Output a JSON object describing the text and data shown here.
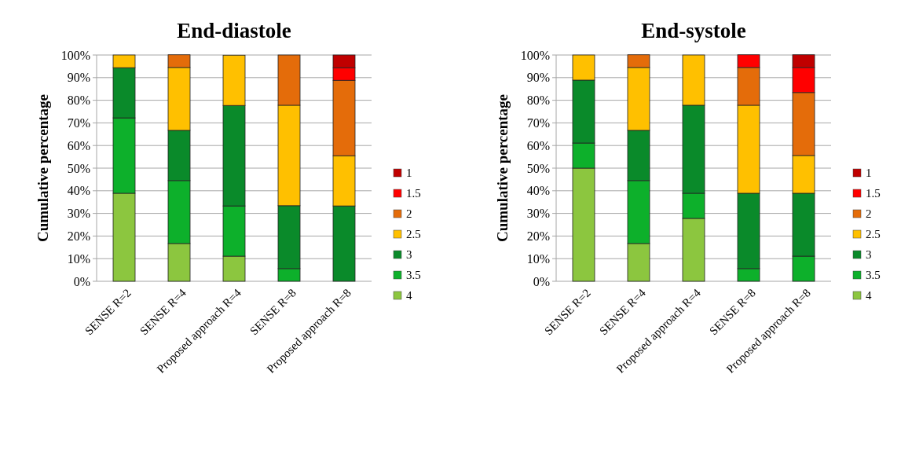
{
  "chart_data": [
    {
      "type": "bar",
      "stacked": true,
      "title": "End-diastole",
      "ylabel": "Cumulative percentage",
      "categories": [
        "SENSE R=2",
        "SENSE R=4",
        "Proposed approach R=4",
        "SENSE R=8",
        "Proposed approach R=8"
      ],
      "series": [
        {
          "name": "4",
          "color": "#8cc63f",
          "values": [
            38.9,
            16.7,
            11.1,
            null,
            null
          ]
        },
        {
          "name": "3.5",
          "color": "#0db02b",
          "values": [
            33.3,
            27.8,
            22.2,
            5.6,
            null
          ]
        },
        {
          "name": "3",
          "color": "#0a8a2a",
          "values": [
            22.2,
            22.2,
            44.4,
            27.8,
            33.3
          ]
        },
        {
          "name": "2.5",
          "color": "#ffc000",
          "values": [
            5.6,
            27.8,
            22.2,
            44.4,
            22.2
          ]
        },
        {
          "name": "2",
          "color": "#e46c0a",
          "values": [
            null,
            5.6,
            null,
            22.2,
            33.3
          ]
        },
        {
          "name": "1.5",
          "color": "#ff0000",
          "values": [
            null,
            null,
            null,
            null,
            5.6
          ]
        },
        {
          "name": "1",
          "color": "#c00000",
          "values": [
            null,
            null,
            null,
            null,
            5.6
          ]
        }
      ],
      "ylim": [
        0,
        100
      ],
      "yticks": [
        {
          "value": 0,
          "label": "0%"
        },
        {
          "value": 10,
          "label": "10%"
        },
        {
          "value": 20,
          "label": "20%"
        },
        {
          "value": 30,
          "label": "30%"
        },
        {
          "value": 40,
          "label": "40%"
        },
        {
          "value": 50,
          "label": "50%"
        },
        {
          "value": 60,
          "label": "60%"
        },
        {
          "value": 70,
          "label": "70%"
        },
        {
          "value": 80,
          "label": "80%"
        },
        {
          "value": 90,
          "label": "90%"
        },
        {
          "value": 100,
          "label": "100%"
        }
      ],
      "grid": "y",
      "legend": "right"
    },
    {
      "type": "bar",
      "stacked": true,
      "title": "End-systole",
      "ylabel": "Cumulative percentage",
      "categories": [
        "SENSE R=2",
        "SENSE R=4",
        "Proposed approach R=4",
        "SENSE R=8",
        "Proposed approach R=8"
      ],
      "series": [
        {
          "name": "4",
          "color": "#8cc63f",
          "values": [
            50,
            16.7,
            27.8,
            null,
            null
          ]
        },
        {
          "name": "3.5",
          "color": "#0db02b",
          "values": [
            11.1,
            27.8,
            11.1,
            5.6,
            11.1
          ]
        },
        {
          "name": "3",
          "color": "#0a8a2a",
          "values": [
            27.8,
            22.2,
            38.9,
            33.3,
            27.8
          ]
        },
        {
          "name": "2.5",
          "color": "#ffc000",
          "values": [
            11.1,
            27.8,
            22.2,
            38.9,
            16.7
          ]
        },
        {
          "name": "2",
          "color": "#e46c0a",
          "values": [
            null,
            5.6,
            null,
            16.7,
            27.8
          ]
        },
        {
          "name": "1.5",
          "color": "#ff0000",
          "values": [
            null,
            null,
            null,
            5.6,
            11.1
          ]
        },
        {
          "name": "1",
          "color": "#c00000",
          "values": [
            null,
            null,
            null,
            null,
            5.6
          ]
        }
      ],
      "ylim": [
        0,
        100
      ],
      "yticks": [
        {
          "value": 0,
          "label": "0%"
        },
        {
          "value": 10,
          "label": "10%"
        },
        {
          "value": 20,
          "label": "20%"
        },
        {
          "value": 30,
          "label": "30%"
        },
        {
          "value": 40,
          "label": "40%"
        },
        {
          "value": 50,
          "label": "50%"
        },
        {
          "value": 60,
          "label": "60%"
        },
        {
          "value": 70,
          "label": "70%"
        },
        {
          "value": 80,
          "label": "80%"
        },
        {
          "value": 90,
          "label": "90%"
        },
        {
          "value": 100,
          "label": "100%"
        }
      ],
      "grid": "y",
      "legend": "right"
    }
  ]
}
